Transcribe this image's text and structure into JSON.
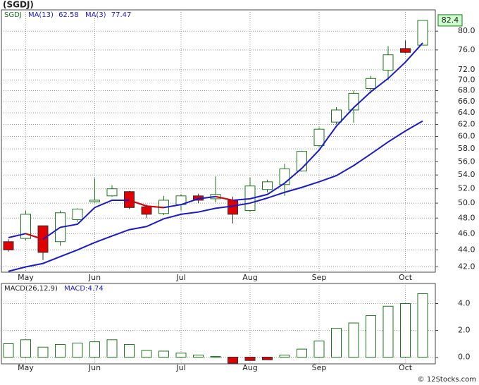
{
  "chart_data": [
    {
      "type": "candlestick",
      "title": "(SGDJ)",
      "name": "SGDJ",
      "log_scale": true,
      "grid": true,
      "up_color": "#1a7a1a",
      "down_color": "#e00000",
      "categories": [
        null,
        "May",
        null,
        null,
        null,
        "Jun",
        null,
        null,
        null,
        null,
        "Jul",
        null,
        null,
        null,
        "Aug",
        null,
        null,
        null,
        "Sep",
        null,
        null,
        null,
        null,
        "Oct",
        null
      ],
      "open": [
        45.0,
        45.4,
        47.0,
        45.0,
        47.8,
        50.2,
        51.0,
        51.6,
        49.5,
        48.6,
        49.8,
        51.0,
        50.6,
        50.4,
        49.0,
        51.9,
        52.6,
        54.6,
        58.5,
        62.4,
        64.5,
        68.4,
        71.9,
        76.3,
        77.0
      ],
      "high": [
        45.3,
        49.0,
        47.0,
        49.0,
        49.3,
        53.5,
        52.5,
        51.7,
        49.8,
        51.0,
        51.2,
        51.3,
        53.8,
        50.9,
        53.6,
        53.3,
        55.7,
        57.7,
        61.5,
        65.0,
        68.0,
        70.8,
        76.8,
        78.0,
        82.4
      ],
      "low": [
        43.8,
        45.2,
        42.8,
        44.5,
        47.5,
        50.1,
        50.9,
        49.2,
        48.0,
        48.4,
        49.0,
        50.0,
        50.1,
        47.3,
        48.8,
        51.5,
        51.0,
        54.5,
        58.3,
        62.0,
        62.3,
        67.5,
        70.0,
        75.3,
        77.0
      ],
      "close": [
        44.0,
        48.5,
        43.7,
        48.7,
        49.2,
        50.4,
        52.0,
        49.4,
        48.5,
        50.4,
        51.0,
        50.4,
        51.2,
        48.5,
        52.4,
        53.0,
        54.9,
        57.6,
        61.2,
        64.5,
        67.5,
        70.3,
        75.0,
        75.5,
        82.4
      ],
      "series": [
        {
          "name": "MA(13)",
          "color": "#1a1acc",
          "values": [
            41.5,
            42.0,
            42.4,
            43.2,
            44.0,
            44.9,
            45.7,
            46.5,
            46.9,
            47.9,
            48.5,
            48.8,
            49.3,
            49.6,
            50.0,
            50.7,
            51.5,
            52.2,
            53.0,
            53.9,
            55.4,
            57.2,
            59.1,
            60.9,
            62.58
          ]
        },
        {
          "name": "MA(3)",
          "color": "#1a1acc",
          "down_color": "#e00000",
          "values": [
            45.5,
            46.0,
            45.3,
            46.8,
            47.2,
            49.4,
            50.4,
            50.4,
            49.6,
            49.4,
            49.8,
            50.6,
            50.9,
            50.4,
            50.6,
            51.2,
            52.8,
            55.0,
            57.8,
            61.7,
            64.9,
            67.8,
            70.3,
            73.5,
            77.47
          ]
        }
      ],
      "ylim": [
        41.4,
        84.8
      ],
      "yticks": [
        {
          "value": 42,
          "label": "42.0"
        },
        {
          "value": 44,
          "label": "44.0"
        },
        {
          "value": 46,
          "label": "46.0"
        },
        {
          "value": 48,
          "label": "48.0"
        },
        {
          "value": 50,
          "label": "50.0"
        },
        {
          "value": 52,
          "label": "52.0"
        },
        {
          "value": 54,
          "label": "54.0"
        },
        {
          "value": 56,
          "label": "56.0"
        },
        {
          "value": 58,
          "label": "58.0"
        },
        {
          "value": 60,
          "label": "60.0"
        },
        {
          "value": 62,
          "label": "62.0"
        },
        {
          "value": 64,
          "label": "64.0"
        },
        {
          "value": 66,
          "label": "66.0"
        },
        {
          "value": 68,
          "label": "68.0"
        },
        {
          "value": 70,
          "label": "70.0"
        },
        {
          "value": 72,
          "label": "72.0"
        },
        {
          "value": 76,
          "label": "76.0"
        },
        {
          "value": 80,
          "label": "80.0"
        }
      ]
    },
    {
      "type": "bar",
      "title": "MACD(26,12,9)",
      "value_label": "MACD:",
      "grid": true,
      "up_color": "#1a7a1a",
      "down_color": "#e00000",
      "values": [
        1.0,
        1.3,
        0.75,
        0.95,
        1.05,
        1.15,
        1.3,
        0.95,
        0.5,
        0.45,
        0.3,
        0.15,
        0.05,
        -0.45,
        -0.25,
        -0.2,
        0.15,
        0.6,
        1.2,
        2.15,
        2.55,
        3.1,
        3.8,
        4.0,
        4.74
      ],
      "ylim": [
        -0.5,
        5.5
      ],
      "yticks": [
        {
          "value": 0,
          "label": "0.0"
        },
        {
          "value": 2,
          "label": "2.0"
        },
        {
          "value": 4,
          "label": "4.0"
        }
      ]
    }
  ],
  "footer": "© 12Stocks.com"
}
